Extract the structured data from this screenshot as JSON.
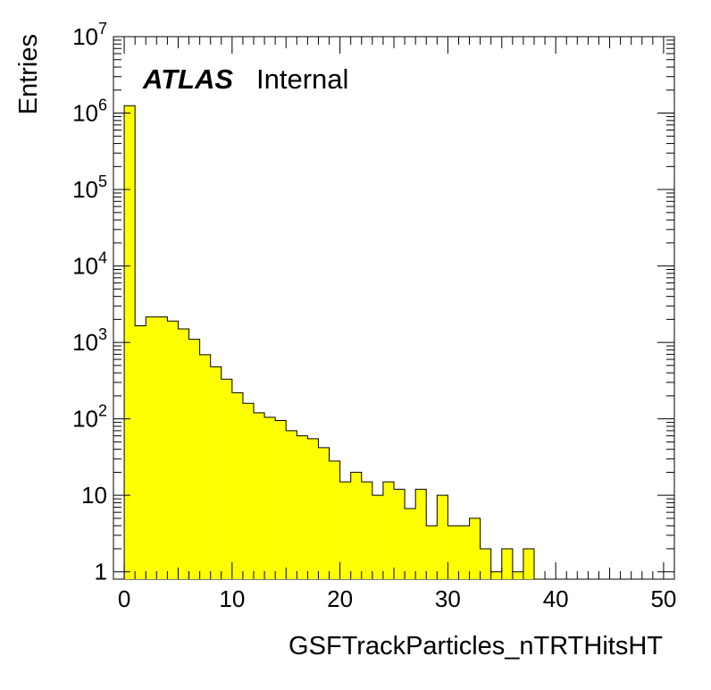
{
  "chart_data": {
    "type": "bar",
    "style": "histogram",
    "fill_color": "#ffff00",
    "line_color": "#000000",
    "label_main": "ATLAS",
    "label_sub": "Internal",
    "xlabel": "GSFTrackParticles_nTRTHitsHT",
    "ylabel": "Entries",
    "xlim": [
      -1,
      51
    ],
    "ylim": [
      0.8,
      10000000
    ],
    "log_y": true,
    "bin_width": 1,
    "x_ticks": [
      0,
      10,
      20,
      30,
      40,
      50
    ],
    "y_ticks": [
      {
        "value": 1,
        "base": "1",
        "exp": ""
      },
      {
        "value": 10,
        "base": "10",
        "exp": ""
      },
      {
        "value": 100,
        "base": "10",
        "exp": "2"
      },
      {
        "value": 1000,
        "base": "10",
        "exp": "3"
      },
      {
        "value": 10000,
        "base": "10",
        "exp": "4"
      },
      {
        "value": 100000,
        "base": "10",
        "exp": "5"
      },
      {
        "value": 1000000,
        "base": "10",
        "exp": "6"
      },
      {
        "value": 10000000,
        "base": "10",
        "exp": "7"
      }
    ],
    "bin_starts": [
      0,
      1,
      2,
      3,
      4,
      5,
      6,
      7,
      8,
      9,
      10,
      11,
      12,
      13,
      14,
      15,
      16,
      17,
      18,
      19,
      20,
      21,
      22,
      23,
      24,
      25,
      26,
      27,
      28,
      29,
      30,
      31,
      32,
      33,
      34,
      35,
      36,
      37,
      38,
      39,
      40,
      41,
      42,
      43,
      44,
      45,
      46,
      47,
      48,
      49
    ],
    "values": [
      1250000,
      1650,
      2150,
      2150,
      1900,
      1500,
      1100,
      690,
      480,
      330,
      220,
      160,
      120,
      105,
      95,
      70,
      60,
      55,
      42,
      28,
      15,
      20,
      15,
      10,
      15,
      12,
      6.7,
      12,
      4,
      10,
      4,
      4,
      5,
      2,
      1,
      2,
      1,
      2,
      0,
      0,
      0,
      0,
      0,
      0,
      0,
      0,
      0,
      0,
      0,
      0
    ]
  }
}
